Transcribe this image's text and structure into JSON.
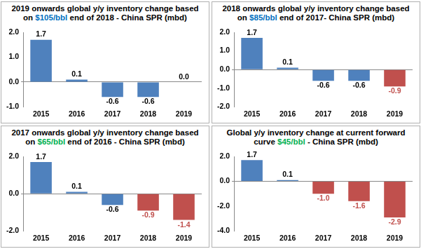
{
  "chart_data": [
    {
      "type": "bar",
      "title": "2019 onwards global y/y inventory change based on $105/bbl end of 2018 - China SPR (mbd)",
      "categories": [
        "2015",
        "2016",
        "2017",
        "2018",
        "2019"
      ],
      "values": [
        1.7,
        0.1,
        -0.6,
        -0.6,
        0.0
      ],
      "value_labels": [
        "1.7",
        "0.1",
        "-0.6",
        "-0.6",
        "0.0"
      ],
      "colors": [
        "#4f81bd",
        "#4f81bd",
        "#4f81bd",
        "#4f81bd",
        "#4f81bd"
      ],
      "ylim": [
        -1,
        2
      ],
      "yticks": [
        {
          "value": -1,
          "label": "-1.0"
        },
        {
          "value": 0,
          "label": "0.0"
        },
        {
          "value": 1,
          "label": "1.0"
        },
        {
          "value": 2,
          "label": "2.0"
        }
      ],
      "grid": false,
      "data_labels": true
    },
    {
      "type": "bar",
      "title": "2018 onwards global y/y inventory change based on $85/bbl end of 2017- China SPR (mbd)",
      "categories": [
        "2015",
        "2016",
        "2017",
        "2018",
        "2019"
      ],
      "values": [
        1.7,
        0.1,
        -0.6,
        -0.6,
        -0.9
      ],
      "value_labels": [
        "1.7",
        "0.1",
        "-0.6",
        "-0.6",
        "-0.9"
      ],
      "colors": [
        "#4f81bd",
        "#4f81bd",
        "#4f81bd",
        "#4f81bd",
        "#c0504d"
      ],
      "ylim": [
        -2,
        2
      ],
      "yticks": [
        {
          "value": -2,
          "label": "-2.0"
        },
        {
          "value": -1,
          "label": "-1.0"
        },
        {
          "value": 0,
          "label": "0.0"
        },
        {
          "value": 1,
          "label": "1.0"
        },
        {
          "value": 2,
          "label": "2.0"
        }
      ],
      "grid": false,
      "data_labels": true
    },
    {
      "type": "bar",
      "title": "2017 onwards global y/y inventory change based on $65/bbl end of 2016 - China SPR (mbd)",
      "categories": [
        "2015",
        "2016",
        "2017",
        "2018",
        "2019"
      ],
      "values": [
        1.7,
        0.1,
        -0.6,
        -0.9,
        -1.4
      ],
      "value_labels": [
        "1.7",
        "0.1",
        "-0.6",
        "-0.9",
        "-1.4"
      ],
      "colors": [
        "#4f81bd",
        "#4f81bd",
        "#4f81bd",
        "#c0504d",
        "#c0504d"
      ],
      "ylim": [
        -2,
        2
      ],
      "yticks": [
        {
          "value": -2,
          "label": "-2.0"
        },
        {
          "value": 0,
          "label": "0.0"
        },
        {
          "value": 2,
          "label": "2.0"
        }
      ],
      "grid": false,
      "data_labels": true
    },
    {
      "type": "bar",
      "title": "Global y/y inventory change at current forward curve $45/bbl - China SPR (mbd)",
      "categories": [
        "2015",
        "2016",
        "2017",
        "2018",
        "2019"
      ],
      "values": [
        1.7,
        0.1,
        -1.0,
        -1.6,
        -2.9
      ],
      "value_labels": [
        "1.7",
        "0.1",
        "-1.0",
        "-1.6",
        "-2.9"
      ],
      "colors": [
        "#4f81bd",
        "#4f81bd",
        "#c0504d",
        "#c0504d",
        "#c0504d"
      ],
      "ylim": [
        -4,
        2
      ],
      "yticks": [
        {
          "value": -4,
          "label": "-4.0"
        },
        {
          "value": -2,
          "label": "-2.0"
        },
        {
          "value": 0,
          "label": "0.0"
        },
        {
          "value": 2,
          "label": "2.0"
        }
      ],
      "grid": false,
      "data_labels": true
    }
  ]
}
